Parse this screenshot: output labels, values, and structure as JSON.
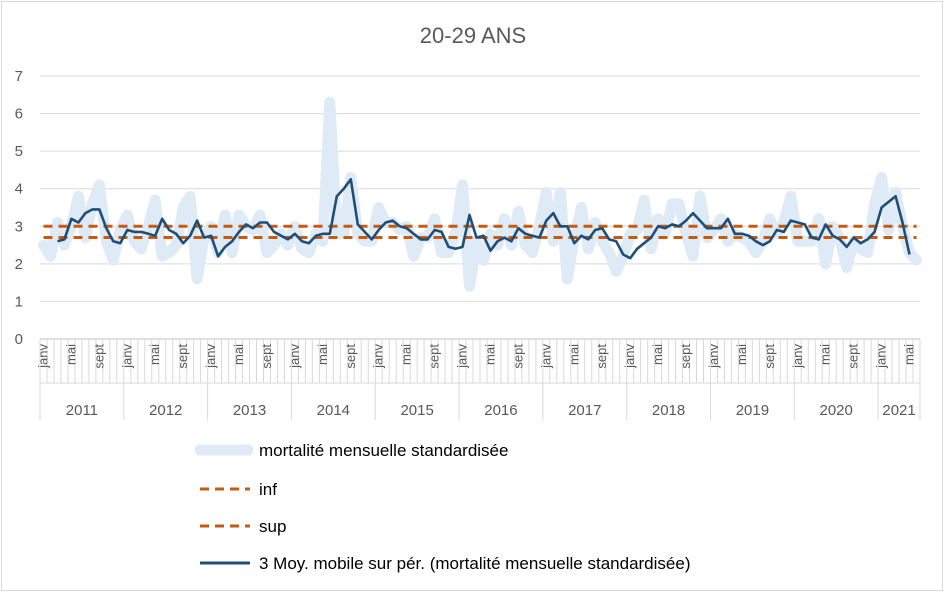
{
  "chart_data": {
    "type": "line",
    "title": "20-29 ANS",
    "ylim": [
      0,
      7
    ],
    "yticks": [
      0,
      1,
      2,
      3,
      4,
      5,
      6,
      7
    ],
    "grid": "horizontal",
    "legend_position": "bottom",
    "month_tick_labels": [
      "janv",
      "mai",
      "sept"
    ],
    "years": [
      "2011",
      "2012",
      "2013",
      "2014",
      "2015",
      "2016",
      "2017",
      "2018",
      "2019",
      "2020",
      "2021"
    ],
    "series": [
      {
        "name": "mortalité mensuelle standardisée",
        "color": "#deebf7",
        "style": "thick-band",
        "values": [
          2.5,
          2.2,
          3.1,
          2.5,
          3.0,
          3.8,
          2.7,
          3.6,
          4.1,
          2.6,
          2.1,
          2.9,
          3.3,
          2.6,
          2.4,
          3.0,
          3.7,
          2.2,
          2.3,
          2.5,
          3.5,
          3.8,
          1.6,
          2.7,
          3.0,
          2.3,
          3.3,
          2.3,
          3.3,
          3.0,
          2.9,
          3.3,
          2.3,
          2.5,
          2.8,
          2.5,
          3.0,
          2.4,
          2.3,
          2.8,
          2.6,
          6.3,
          2.8,
          2.8,
          4.3,
          2.8,
          2.6,
          2.6,
          3.5,
          3.1,
          3.1,
          2.9,
          3.0,
          2.2,
          2.7,
          2.7,
          3.2,
          2.3,
          2.3,
          2.8,
          4.1,
          1.4,
          2.6,
          2.1,
          2.8,
          2.5,
          3.2,
          2.5,
          3.4,
          2.5,
          2.3,
          3.0,
          3.9,
          2.6,
          3.9,
          1.6,
          2.7,
          3.5,
          2.4,
          3.1,
          2.6,
          2.3,
          1.8,
          2.2,
          2.8,
          2.9,
          3.7,
          2.4,
          3.2,
          2.8,
          3.6,
          3.6,
          2.8,
          2.2,
          3.8,
          2.7,
          2.9,
          3.2,
          2.6,
          2.8,
          2.7,
          2.6,
          2.3,
          2.6,
          3.2,
          2.8,
          3.1,
          3.8,
          2.6,
          2.6,
          2.6,
          3.2,
          2.0,
          3.0,
          2.7,
          1.9,
          2.6,
          2.4,
          2.3,
          3.6,
          4.3,
          2.9,
          3.9,
          3.0,
          2.3,
          2.1
        ]
      },
      {
        "name": "inf",
        "color": "#c55a11",
        "style": "dashed",
        "constant": 3.0
      },
      {
        "name": "sup",
        "color": "#c55a11",
        "style": "dashed",
        "constant": 2.7
      },
      {
        "name": "3 Moy. mobile sur pér. (mortalité mensuelle standardisée)",
        "color": "#1f4e79",
        "style": "line",
        "start_index": 2,
        "values": [
          2.6,
          2.65,
          3.2,
          3.1,
          3.35,
          3.45,
          3.45,
          2.95,
          2.6,
          2.55,
          2.9,
          2.85,
          2.85,
          2.8,
          2.75,
          3.2,
          2.9,
          2.8,
          2.55,
          2.75,
          3.15,
          2.7,
          2.75,
          2.2,
          2.45,
          2.6,
          2.85,
          3.05,
          2.95,
          3.1,
          3.1,
          2.85,
          2.75,
          2.65,
          2.8,
          2.6,
          2.55,
          2.75,
          2.8,
          2.8,
          3.8,
          4.0,
          4.25,
          3.05,
          2.85,
          2.65,
          2.9,
          3.1,
          3.15,
          3.0,
          2.95,
          2.8,
          2.65,
          2.65,
          2.9,
          2.85,
          2.45,
          2.4,
          2.45,
          3.3,
          2.7,
          2.75,
          2.35,
          2.6,
          2.7,
          2.6,
          2.95,
          2.8,
          2.75,
          2.7,
          3.15,
          3.35,
          3.0,
          3.0,
          2.55,
          2.75,
          2.65,
          2.9,
          2.95,
          2.65,
          2.6,
          2.25,
          2.15,
          2.4,
          2.55,
          2.7,
          3.0,
          2.95,
          3.05,
          3.0,
          3.15,
          3.35,
          3.15,
          2.95,
          2.95,
          2.95,
          3.2,
          2.8,
          2.8,
          2.75,
          2.6,
          2.5,
          2.6,
          2.9,
          2.85,
          3.15,
          3.1,
          3.05,
          2.7,
          2.65,
          3.05,
          2.75,
          2.65,
          2.45,
          2.7,
          2.55,
          2.65,
          2.85,
          3.5,
          3.65,
          3.8,
          3.1,
          2.25
        ]
      }
    ]
  }
}
